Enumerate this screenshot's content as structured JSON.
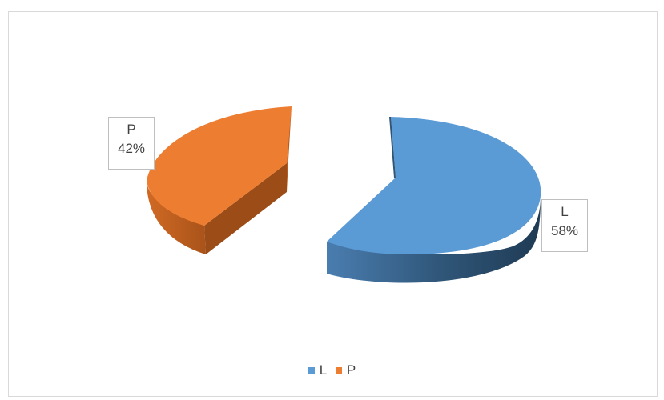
{
  "chart_data": {
    "type": "pie",
    "title": "",
    "categories": [
      "L",
      "P"
    ],
    "values": [
      58,
      42
    ],
    "data_labels": [
      "58%",
      "42%"
    ],
    "colors": [
      "#5b9bd5",
      "#ed7d31"
    ],
    "three_d": true,
    "exploded": true,
    "legend_position": "bottom"
  }
}
